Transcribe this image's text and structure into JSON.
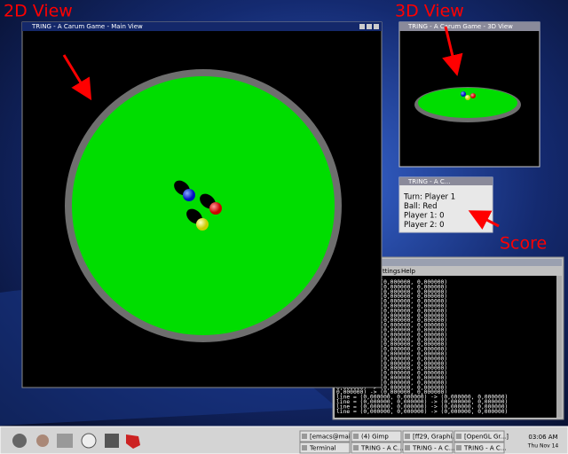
{
  "annotations": {
    "view_2d": "2D View",
    "view_3d": "3D View",
    "score": "Score"
  },
  "main_window": {
    "title": "TRING - A Carum Game - Main View"
  },
  "view_3d_window": {
    "title": "TRING - A Carum Game - 3D View"
  },
  "score_window": {
    "title": "TRING - A C...",
    "lines": [
      "Turn: Player 1",
      "Ball: Red",
      "Player 1: 0",
      "Player 2: 0"
    ]
  },
  "terminal": {
    "menu": [
      "ttings",
      "Help"
    ],
    "lines": [
      "0,000000) -> (0,000000, 0,000000)",
      "0,000000) -> (0,000000, 0,000000)",
      "0,000000) -> (0,000000, 0,000000)",
      "0,000000) -> (0,000000, 0,000000)",
      "0,000000) -> (0,000000, 0,000000)",
      "0,000000) -> (0,000000, 0,000000)",
      "0,000000) -> (0,000000, 0,000000)",
      "0,000000) -> (0,000000, 0,000000)",
      "0,000000) -> (0,000000, 0,000000)",
      "0,000000) -> (0,000000, 0,000000)",
      "0,000000) -> (0,000000, 0,000000)",
      "0,000000) -> (0,000000, 0,000000)",
      "0,000000) -> (0,000000, 0,000000)",
      "0,000000) -> (0,000000, 0,000000)",
      "0,000000) -> (0,000000, 0,000000)",
      "0,000000) -> (0,000000, 0,000000)",
      "0,000000) -> (0,000000, 0,000000)",
      "0,000000) -> (0,000000, 0,000000)",
      "0,000000) -> (0,000000, 0,000000)",
      "0,000000) -> (0,000000, 0,000000)",
      "0,000000) -> (0,000000, 0,000000)",
      "0,000000) -> (0,000000, 0,000000)",
      "0,000000) -> (0,000000, 0,000000)",
      "0,000000) -> (0,000000, 0,000000)",
      "line = (0,000000, 0,000000) -> (0,000000, 0,000000)",
      "line = (0,000000, 0,000000) -> (0,000000, 0,000000)",
      "line = (0,000000, 0,000000) -> (0,000000, 0,000000)",
      "line = (0,000000, 0,000000) -> (0,000000, 0,000000)"
    ]
  },
  "taskbar": {
    "tasks": [
      "[emacs@mai...]",
      "(4) Gimp",
      "[ff29, Graphi...]",
      "[OpenGL Gr...]",
      "Terminal",
      "TRING - A C...",
      "TRING - A C...",
      "TRING - A C..."
    ],
    "clock": {
      "time": "03:06 AM",
      "date": "Thu Nov 14"
    }
  }
}
